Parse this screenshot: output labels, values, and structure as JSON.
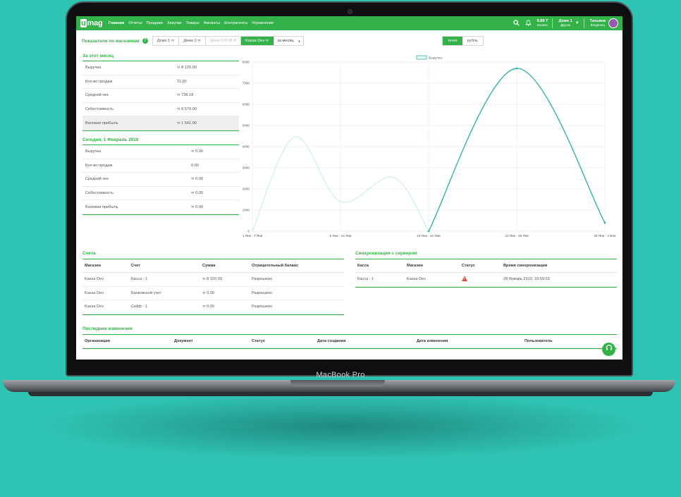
{
  "device": {
    "label": "MacBook Pro"
  },
  "colors": {
    "accent": "#34b24a",
    "chart_line": "#36b3a5",
    "background": "#2fc3b3",
    "warning": "#e74c3c"
  },
  "nav": {
    "logo_mark": "u",
    "logo_text": "mag",
    "items": [
      "Главная",
      "Отчеты",
      "Продажи",
      "Закупки",
      "Товары",
      "Финансы",
      "Контрагенты",
      "Управление"
    ],
    "active_item": "Главная",
    "search_icon": "search-icon",
    "bell_icon": "bell-icon",
    "balance_value": "9.89 T",
    "balance_label": "Баланс",
    "company_name": "Демо 1",
    "company_sub": "Другие",
    "user_name": "Татьяна",
    "user_sub": "Владелец"
  },
  "toolbar": {
    "title": "Показатели по магазинам",
    "stores": [
      "Демо 1 тг",
      "Демо 2 тг",
      "Демо 3 RUB ₽",
      "Kassa Dev тг"
    ],
    "period": "за месяц",
    "currencies": [
      "тенге",
      "рубль"
    ]
  },
  "month": {
    "title": "За этот месяц",
    "rows": [
      {
        "label": "Выручка",
        "value": "тг 8 120.00"
      },
      {
        "label": "Кол-во продаж",
        "value": "11.00"
      },
      {
        "label": "Средний чек",
        "value": "тг 738.18"
      },
      {
        "label": "Себестоимость",
        "value": "тг 6 579.00"
      },
      {
        "label": "Валовая прибыль",
        "value": "тг 1 541.00"
      }
    ]
  },
  "today": {
    "title": "Сегодня, 1 Февраль 2019",
    "rows": [
      {
        "label": "Выручка",
        "value": "тг 0.00"
      },
      {
        "label": "Кол-во продаж",
        "value": "0.00"
      },
      {
        "label": "Средний чек",
        "value": "тг 0.00"
      },
      {
        "label": "Себестоимость",
        "value": "тг 0.00"
      },
      {
        "label": "Валовая прибыль",
        "value": "тг 0.00"
      }
    ]
  },
  "chart_data": {
    "type": "line",
    "legend": "Выручка",
    "yticks": [
      0,
      1000,
      2000,
      3000,
      4000,
      5000,
      6000,
      7000,
      8000
    ],
    "ylim": [
      0,
      8000
    ],
    "x_labels": [
      "1 Янв - 7 Янв",
      "8 Янв - 14 Янв",
      "15 Янв - 21 Янв",
      "22 Янв - 28 Янв",
      "29 Янв - 4 Фев"
    ],
    "faded_curve": {
      "x": [
        0,
        0.48,
        1,
        1.6,
        2
      ],
      "y": [
        0,
        4450,
        1400,
        2550,
        0
      ]
    },
    "main_curve": {
      "x": [
        2,
        3,
        4
      ],
      "y": [
        0,
        7700,
        400
      ]
    }
  },
  "accounts": {
    "title": "Счета",
    "columns": [
      "Магазин",
      "Счет",
      "Сумма",
      "Отрицательный баланс"
    ],
    "rows": [
      [
        "Kassa Dev",
        "Касса - 1",
        "тг 8 120.00",
        "Разрешено"
      ],
      [
        "Kassa Dev",
        "Банковской счет",
        "тг 0.00",
        "Разрешено"
      ],
      [
        "Kassa Dev",
        "Сейф - 1",
        "тг 0.00",
        "Разрешено"
      ]
    ]
  },
  "sync": {
    "title": "Синхронизация с сервером",
    "columns": [
      "Касса",
      "Магазин",
      "Статус",
      "Время синхронизации"
    ],
    "rows": [
      {
        "kassa": "Касса - 1",
        "store": "Kassa Dev",
        "status_icon": "warning-icon",
        "time": "28 Январь 2019, 10:59:53"
      }
    ]
  },
  "changes": {
    "title": "Последние изменения",
    "columns": [
      "Организация",
      "Документ",
      "Статус",
      "Дата создания",
      "Дата изменения",
      "Пользователь"
    ]
  },
  "chat_icon": "headset-icon"
}
